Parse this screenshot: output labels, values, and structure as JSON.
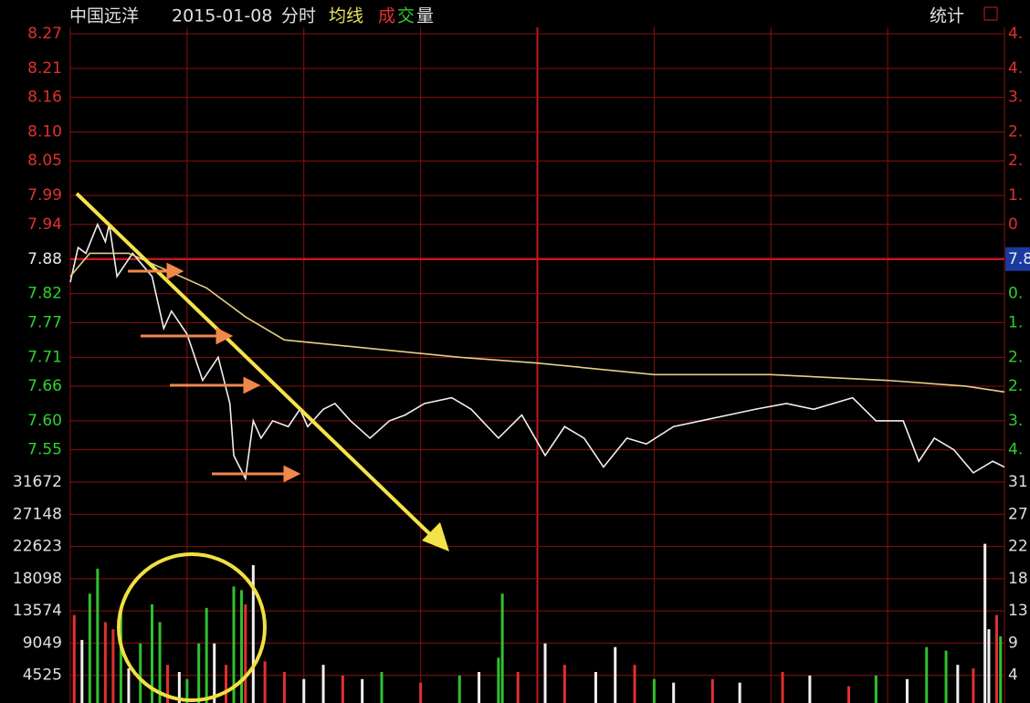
{
  "header": {
    "stock": "中国远洋",
    "date": "2015-01-08",
    "mode": "分时",
    "avg": "均线",
    "vol1": "成",
    "vol2": "交",
    "vol3": "量",
    "stats": "统计"
  },
  "chart_data": [
    {
      "type": "line",
      "xlim": [
        0,
        240
      ],
      "xticks": [
        0,
        30,
        60,
        90,
        120,
        150,
        180,
        210,
        240
      ],
      "ylim": [
        7.494,
        8.27
      ],
      "yticks": [
        8.27,
        8.21,
        8.16,
        {
          "value": 8.1,
          "label": "8.10"
        },
        8.05,
        7.99,
        7.94,
        7.88,
        7.82,
        7.77,
        7.71,
        7.66,
        {
          "value": 7.6,
          "label": "7.60"
        },
        7.55
      ],
      "ytick_colors": [
        "#e03030",
        "#e03030",
        "#e03030",
        "#e03030",
        "#e03030",
        "#e03030",
        "#e03030",
        "#e8e8e8",
        "#30d030",
        "#30d030",
        "#30d030",
        "#30d030",
        "#30d030",
        "#30d030"
      ],
      "right_labels": [
        "4.",
        "4.",
        "3.",
        "2.",
        "2.",
        "1.",
        "0",
        "7.8",
        "0.",
        "1.",
        "2.",
        "2.",
        "3.",
        "4."
      ],
      "series": [
        {
          "name": "price",
          "color": "#f0f0f0",
          "x": [
            0,
            2,
            4,
            7,
            9,
            10,
            12,
            16,
            21,
            24,
            26,
            30,
            34,
            38,
            41,
            42,
            45,
            47,
            49,
            52,
            56,
            59,
            61,
            65,
            68,
            72,
            77,
            82,
            86,
            91,
            98,
            103,
            110,
            116,
            122,
            127,
            132,
            137,
            143,
            148,
            155,
            162,
            169,
            176,
            184,
            191,
            201,
            207,
            214,
            218,
            222,
            227,
            232,
            237,
            240
          ],
          "values": [
            7.84,
            7.9,
            7.89,
            7.94,
            7.91,
            7.94,
            7.85,
            7.89,
            7.85,
            7.76,
            7.79,
            7.75,
            7.67,
            7.71,
            7.63,
            7.54,
            7.5,
            7.6,
            7.57,
            7.6,
            7.59,
            7.62,
            7.59,
            7.62,
            7.63,
            7.6,
            7.57,
            7.6,
            7.61,
            7.63,
            7.64,
            7.62,
            7.57,
            7.61,
            7.54,
            7.59,
            7.57,
            7.52,
            7.57,
            7.56,
            7.59,
            7.6,
            7.61,
            7.62,
            7.63,
            7.62,
            7.64,
            7.6,
            7.6,
            7.53,
            7.57,
            7.55,
            7.51,
            7.53,
            7.52
          ]
        },
        {
          "name": "average",
          "color": "#e6cf86",
          "x": [
            0,
            5,
            15,
            25,
            35,
            45,
            55,
            70,
            100,
            120,
            150,
            180,
            210,
            230,
            240
          ],
          "values": [
            7.85,
            7.89,
            7.89,
            7.86,
            7.83,
            7.78,
            7.74,
            7.73,
            7.71,
            7.7,
            7.68,
            7.68,
            7.67,
            7.66,
            7.65
          ]
        }
      ]
    },
    {
      "type": "bar",
      "xlim": [
        0,
        240
      ],
      "ylim": [
        0,
        31672
      ],
      "yticks": [
        31672,
        27148,
        22623,
        18098,
        13574,
        9049,
        4525
      ],
      "right_labels": [
        "31",
        "27",
        "22",
        "18",
        "13",
        "9",
        "4"
      ],
      "x": [
        1,
        3,
        5,
        7,
        9,
        11,
        13,
        15,
        18,
        21,
        23,
        25,
        28,
        30,
        33,
        35,
        37,
        40,
        42,
        44,
        45,
        47,
        50,
        55,
        60,
        65,
        70,
        75,
        80,
        90,
        100,
        105,
        110,
        111,
        115,
        122,
        127,
        135,
        140,
        145,
        150,
        155,
        165,
        172,
        183,
        190,
        200,
        207,
        215,
        220,
        225,
        228,
        232,
        235,
        236,
        238,
        239
      ],
      "values": [
        13000,
        9500,
        16000,
        19500,
        12000,
        11000,
        14000,
        5500,
        9000,
        14500,
        12000,
        6000,
        5000,
        4000,
        9000,
        14000,
        9000,
        6000,
        17000,
        16500,
        14500,
        20000,
        6500,
        5000,
        4000,
        6000,
        4500,
        4000,
        5000,
        3500,
        4500,
        5000,
        7000,
        16000,
        5000,
        9000,
        6000,
        5000,
        8500,
        6000,
        4000,
        3500,
        4000,
        3500,
        5000,
        4500,
        3000,
        4500,
        4000,
        8500,
        8000,
        6000,
        5500,
        23000,
        11000,
        13000,
        10000
      ],
      "colors": [
        "#e03030",
        "#f0f0f0",
        "#30c030",
        "#30c030",
        "#e03030",
        "#e03030",
        "#30c030",
        "#f0f0f0",
        "#30c030",
        "#30c030",
        "#30c030",
        "#e03030",
        "#f0f0f0",
        "#30c030",
        "#30c030",
        "#30c030",
        "#f0f0f0",
        "#e03030",
        "#30c030",
        "#30c030",
        "#e03030",
        "#f0f0f0",
        "#e03030",
        "#e03030",
        "#f0f0f0",
        "#f0f0f0",
        "#e03030",
        "#f0f0f0",
        "#30c030",
        "#e03030",
        "#30c030",
        "#f0f0f0",
        "#30c030",
        "#30c030",
        "#e03030",
        "#f0f0f0",
        "#e03030",
        "#f0f0f0",
        "#f0f0f0",
        "#e03030",
        "#30c030",
        "#f0f0f0",
        "#e03030",
        "#f0f0f0",
        "#e03030",
        "#f0f0f0",
        "#e03030",
        "#30c030",
        "#f0f0f0",
        "#30c030",
        "#30c030",
        "#f0f0f0",
        "#e03030",
        "#f0f0f0",
        "#f0f0f0",
        "#e03030",
        "#30c030"
      ]
    }
  ]
}
